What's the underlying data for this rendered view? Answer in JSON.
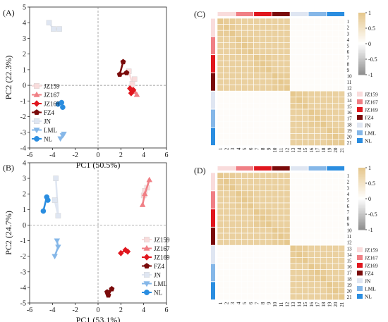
{
  "palette": {
    "JZ159": "#f9dcdc",
    "JZ167": "#f07f85",
    "JZ169": "#e0161e",
    "FZ4": "#7a0a0a",
    "JN": "#dfe6f2",
    "LML": "#85b7e8",
    "NL": "#2a8de0"
  },
  "legend_order": [
    "JZ159",
    "JZ167",
    "JZ169",
    "FZ4",
    "JN",
    "LML",
    "NL"
  ],
  "marker_by_group": {
    "JZ159": "square",
    "JZ167": "triangle-up",
    "JZ169": "diamond",
    "FZ4": "pentagon",
    "JN": "square",
    "LML": "triangle-down",
    "NL": "circle"
  },
  "heatmap_index_labels": [
    "1",
    "2",
    "3",
    "4",
    "5",
    "6",
    "7",
    "8",
    "9",
    "10",
    "11",
    "12",
    "13",
    "14",
    "15",
    "16",
    "17",
    "18",
    "19",
    "20",
    "21"
  ],
  "colorbar": {
    "ticks": [
      "1",
      "0.5",
      "0",
      "-0.5",
      "-1"
    ],
    "low_color": "#909090",
    "mid_color": "#ffffff",
    "high_color": "#e6c88e"
  },
  "panels": {
    "A": {
      "label": "(A)",
      "chart_data": {
        "type": "scatter",
        "xlabel": "PC1 (50.5%)",
        "ylabel": "PC2 (22.3%)",
        "xlim": [
          -6,
          6
        ],
        "ylim": [
          -4,
          5
        ],
        "xticks": [
          "-6",
          "-4",
          "-2",
          "0",
          "2",
          "4",
          "6"
        ],
        "yticks": [
          "-4",
          "-3",
          "-2",
          "-1",
          "0",
          "1",
          "2",
          "3",
          "4",
          "5"
        ],
        "legend_position": "left",
        "series": [
          {
            "name": "JZ159",
            "points": [
              [
                2.7,
                0.9
              ],
              [
                3.0,
                0.1
              ],
              [
                3.2,
                0.4
              ]
            ]
          },
          {
            "name": "JZ167",
            "points": [
              [
                3.2,
                -0.4
              ],
              [
                3.4,
                -0.6
              ],
              [
                3.0,
                -0.3
              ]
            ]
          },
          {
            "name": "JZ169",
            "points": [
              [
                2.8,
                -0.2
              ],
              [
                3.1,
                -0.3
              ],
              [
                2.9,
                -0.5
              ]
            ]
          },
          {
            "name": "FZ4",
            "points": [
              [
                2.2,
                1.5
              ],
              [
                1.9,
                0.7
              ],
              [
                2.5,
                0.8
              ]
            ]
          },
          {
            "name": "JN",
            "points": [
              [
                -4.3,
                4.0
              ],
              [
                -3.9,
                3.6
              ],
              [
                -3.4,
                3.6
              ]
            ]
          },
          {
            "name": "LML",
            "points": [
              [
                -3.3,
                -3.4
              ],
              [
                -3.1,
                -3.2
              ],
              [
                -3.0,
                -3.1
              ]
            ]
          },
          {
            "name": "NL",
            "points": [
              [
                -3.5,
                -1.2
              ],
              [
                -3.2,
                -1.1
              ],
              [
                -3.1,
                -1.4
              ]
            ]
          }
        ]
      }
    },
    "B": {
      "label": "(B)",
      "chart_data": {
        "type": "scatter",
        "xlabel": "PC1 (53.1%)",
        "ylabel": "PC2 (24.7%)",
        "xlim": [
          -6,
          6
        ],
        "ylim": [
          -5,
          4
        ],
        "xticks": [
          "-6",
          "-4",
          "-2",
          "0",
          "2",
          "4",
          "6"
        ],
        "yticks": [
          "-5",
          "-4",
          "-3",
          "-2",
          "-1",
          "0",
          "1",
          "2",
          "3",
          "4"
        ],
        "legend_position": "right",
        "series": [
          {
            "name": "JZ159",
            "points": [
              [
                4.0,
                1.9
              ],
              [
                4.3,
                2.4
              ],
              [
                4.1,
                2.2
              ]
            ]
          },
          {
            "name": "JZ167",
            "points": [
              [
                3.9,
                1.3
              ],
              [
                4.1,
                2.0
              ],
              [
                4.5,
                2.9
              ]
            ]
          },
          {
            "name": "JZ169",
            "points": [
              [
                2.0,
                -1.8
              ],
              [
                2.4,
                -1.6
              ],
              [
                2.6,
                -1.7
              ]
            ]
          },
          {
            "name": "FZ4",
            "points": [
              [
                0.8,
                -4.3
              ],
              [
                1.2,
                -4.1
              ],
              [
                0.9,
                -4.5
              ]
            ]
          },
          {
            "name": "JN",
            "points": [
              [
                -3.7,
                3.0
              ],
              [
                -3.5,
                0.6
              ],
              [
                -3.8,
                1.6
              ]
            ]
          },
          {
            "name": "LML",
            "points": [
              [
                -3.6,
                -1.0
              ],
              [
                -3.5,
                -1.4
              ],
              [
                -3.8,
                -2.0
              ]
            ]
          },
          {
            "name": "NL",
            "points": [
              [
                -4.8,
                0.9
              ],
              [
                -4.5,
                1.8
              ],
              [
                -4.4,
                1.6
              ]
            ]
          }
        ]
      }
    },
    "C": {
      "label": "(C)",
      "chart_data": {
        "type": "heatmap",
        "categories": [
          "1",
          "2",
          "3",
          "4",
          "5",
          "6",
          "7",
          "8",
          "9",
          "10",
          "11",
          "12",
          "13",
          "14",
          "15",
          "16",
          "17",
          "18",
          "19",
          "20",
          "21"
        ],
        "group_of_sample": [
          "JZ159",
          "JZ159",
          "JZ159",
          "JZ167",
          "JZ167",
          "JZ167",
          "JZ169",
          "JZ169",
          "JZ169",
          "FZ4",
          "FZ4",
          "FZ4",
          "JN",
          "JN",
          "JN",
          "LML",
          "LML",
          "LML",
          "NL",
          "NL",
          "NL"
        ],
        "value_range": [
          -1,
          1
        ],
        "within_block_correlation": 0.92,
        "between_cluster_correlation": 0.05,
        "clusters": [
          [
            "JZ159",
            "JZ167",
            "JZ169",
            "FZ4"
          ],
          [
            "JN",
            "LML",
            "NL"
          ]
        ]
      }
    },
    "D": {
      "label": "(D)",
      "chart_data": {
        "type": "heatmap",
        "categories": [
          "1",
          "2",
          "3",
          "4",
          "5",
          "6",
          "7",
          "8",
          "9",
          "10",
          "11",
          "12",
          "13",
          "14",
          "15",
          "16",
          "17",
          "18",
          "19",
          "20",
          "21"
        ],
        "group_of_sample": [
          "JZ159",
          "JZ159",
          "JZ159",
          "JZ167",
          "JZ167",
          "JZ167",
          "JZ169",
          "JZ169",
          "JZ169",
          "FZ4",
          "FZ4",
          "FZ4",
          "JN",
          "JN",
          "JN",
          "LML",
          "LML",
          "LML",
          "NL",
          "NL",
          "NL"
        ],
        "value_range": [
          -1,
          1
        ],
        "within_block_correlation": 0.92,
        "between_cluster_correlation": 0.05,
        "clusters": [
          [
            "JZ159",
            "JZ167",
            "JZ169",
            "FZ4"
          ],
          [
            "JN",
            "LML",
            "NL"
          ]
        ]
      }
    }
  }
}
